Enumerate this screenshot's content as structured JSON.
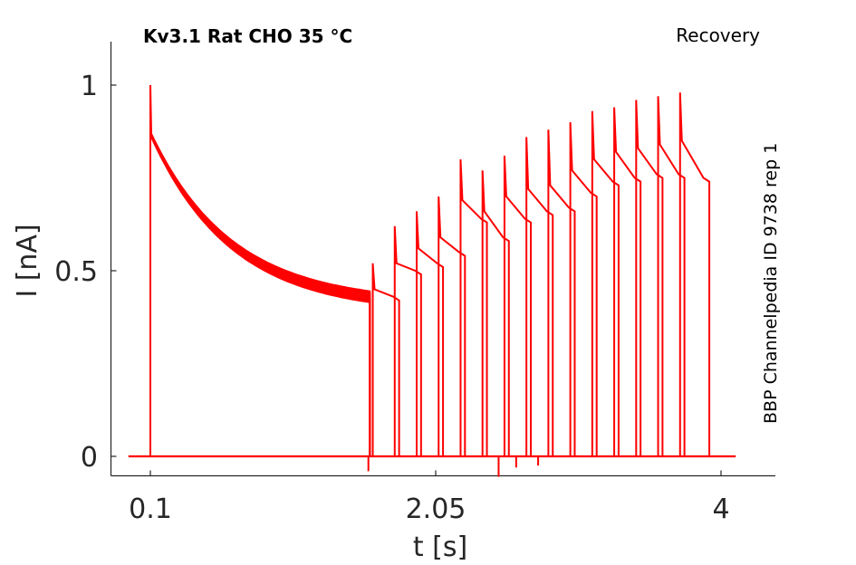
{
  "chart_data": {
    "type": "line",
    "title": "Kv3.1  Rat  CHO  35 °C",
    "subtitle": "Recovery",
    "side_note": "BBP Channelpedia ID 9738 rep 1",
    "xlabel": "t [s]",
    "ylabel": "I [nA]",
    "xlim": [
      -0.2,
      4.2
    ],
    "ylim": [
      -0.055,
      1.12
    ],
    "x_ticks": [
      0.1,
      2.05,
      4.0
    ],
    "x_tick_labels": [
      "0.1",
      "2.05",
      "4"
    ],
    "y_ticks": [
      0,
      0.5,
      1
    ],
    "y_tick_labels": [
      "0",
      "0.5",
      "1"
    ],
    "grid": false,
    "line_color": "#ff0000",
    "baseline": {
      "x_start": -0.05,
      "x_end": 4.1,
      "y": 0.0
    },
    "first_pulse": {
      "onset_x": 0.1,
      "peak_y": 1.0,
      "plateau_start_y": 0.87,
      "decay_end_x": 1.6,
      "decay_end_y": 0.43,
      "decay_band_width": 0.03
    },
    "recovery_pulses": [
      {
        "x": 1.62,
        "peak": 0.52,
        "start": 0.45,
        "end_x": 1.8,
        "end": 0.43
      },
      {
        "x": 1.77,
        "peak": 0.62,
        "start": 0.52,
        "end_x": 1.95,
        "end": 0.5
      },
      {
        "x": 1.92,
        "peak": 0.66,
        "start": 0.56,
        "end_x": 2.1,
        "end": 0.52
      },
      {
        "x": 2.07,
        "peak": 0.7,
        "start": 0.59,
        "end_x": 2.25,
        "end": 0.55
      },
      {
        "x": 2.22,
        "peak": 0.8,
        "start": 0.69,
        "end_x": 2.4,
        "end": 0.64
      },
      {
        "x": 2.37,
        "peak": 0.77,
        "start": 0.66,
        "end_x": 2.55,
        "end": 0.59
      },
      {
        "x": 2.52,
        "peak": 0.81,
        "start": 0.7,
        "end_x": 2.7,
        "end": 0.64
      },
      {
        "x": 2.67,
        "peak": 0.86,
        "start": 0.72,
        "end_x": 2.85,
        "end": 0.66
      },
      {
        "x": 2.82,
        "peak": 0.88,
        "start": 0.73,
        "end_x": 3.0,
        "end": 0.67
      },
      {
        "x": 2.97,
        "peak": 0.9,
        "start": 0.77,
        "end_x": 3.15,
        "end": 0.71
      },
      {
        "x": 3.12,
        "peak": 0.93,
        "start": 0.8,
        "end_x": 3.3,
        "end": 0.74
      },
      {
        "x": 3.27,
        "peak": 0.94,
        "start": 0.82,
        "end_x": 3.45,
        "end": 0.75
      },
      {
        "x": 3.42,
        "peak": 0.96,
        "start": 0.83,
        "end_x": 3.6,
        "end": 0.76
      },
      {
        "x": 3.57,
        "peak": 0.97,
        "start": 0.84,
        "end_x": 3.75,
        "end": 0.76
      },
      {
        "x": 3.72,
        "peak": 0.98,
        "start": 0.85,
        "end_x": 3.92,
        "end": 0.75
      }
    ],
    "dips": [
      {
        "x": 1.59,
        "y": -0.04
      },
      {
        "x": 2.48,
        "y": -0.055
      },
      {
        "x": 2.6,
        "y": -0.03
      },
      {
        "x": 2.75,
        "y": -0.025
      }
    ]
  }
}
